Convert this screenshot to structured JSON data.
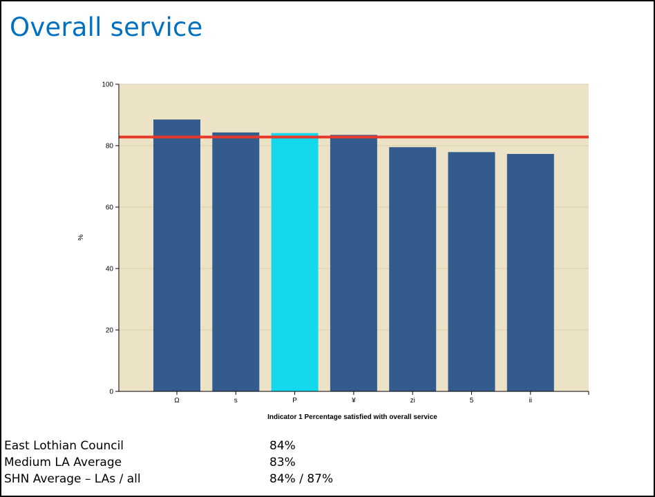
{
  "slide": {
    "title": "Overall service"
  },
  "chart_data": {
    "type": "bar",
    "categories": [
      "Ω",
      "s",
      "P",
      "¥",
      "zi",
      "5",
      "ii"
    ],
    "values": [
      88.5,
      84.3,
      84.1,
      83.5,
      79.5,
      77.9,
      77.3
    ],
    "highlight_index": 2,
    "reference_line": 82.8,
    "xlabel": "Indicator 1 Percentage satisfied with overall service",
    "ylabel": "%",
    "ylim": [
      0,
      100
    ],
    "yticks": [
      0,
      20,
      40,
      60,
      80,
      100
    ],
    "grid": true,
    "colors": {
      "plot_background": "#ece3c6",
      "bar": "#335b8e",
      "highlight_bar": "#14d8ec",
      "reference_line": "#e8382b",
      "gridline": "#d9cfae"
    }
  },
  "stats": [
    {
      "label": "East Lothian Council",
      "value": "84%"
    },
    {
      "label": "Medium LA Average",
      "value": "83%"
    },
    {
      "label": "SHN Average – LAs / all",
      "value": "84% / 87%"
    }
  ]
}
